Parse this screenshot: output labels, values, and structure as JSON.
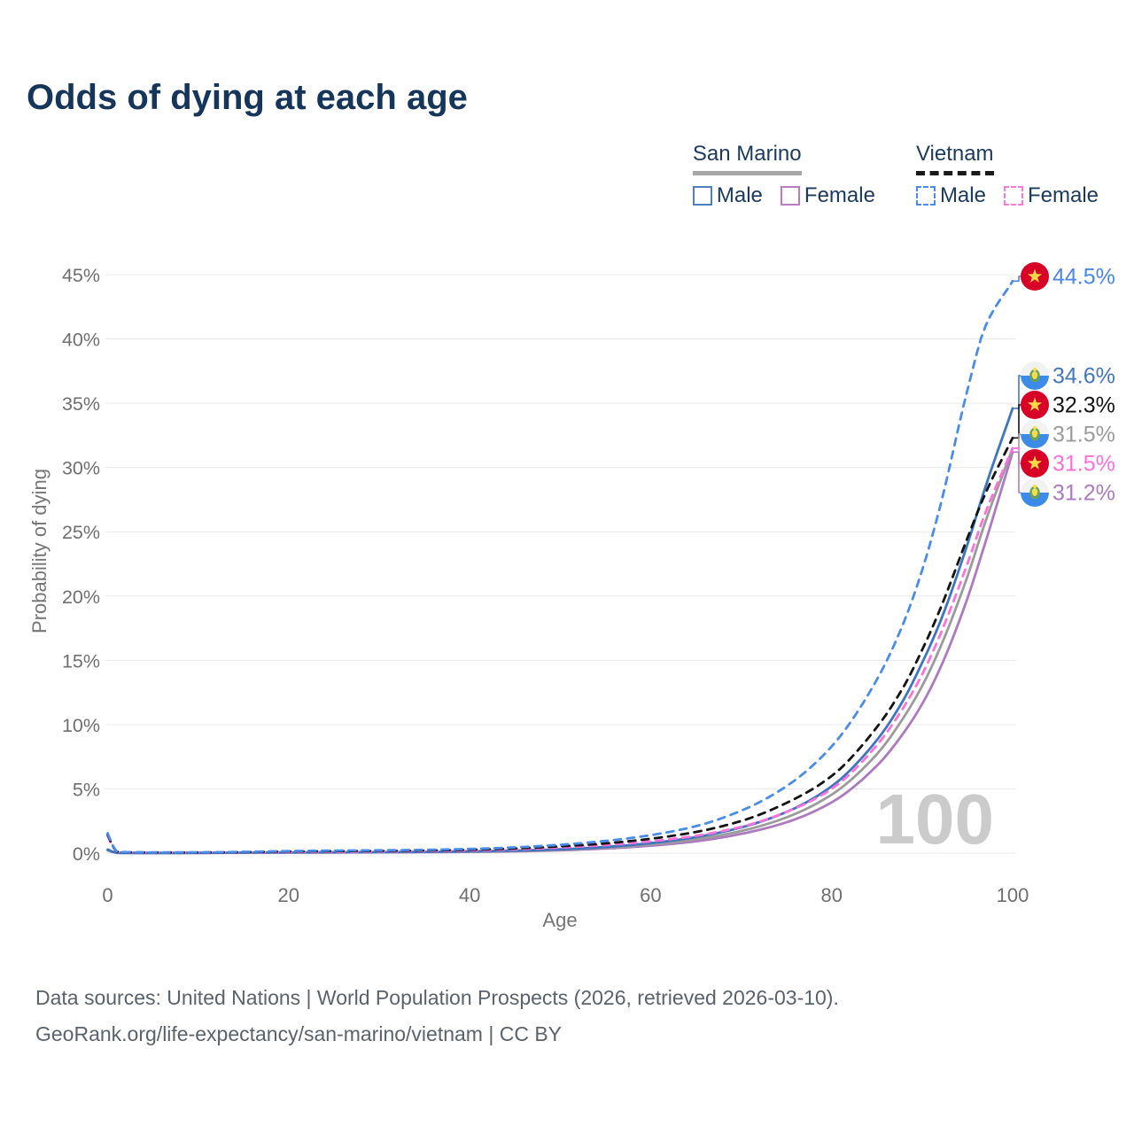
{
  "title": "Odds of dying at each age",
  "legend": {
    "groups": [
      {
        "name": "San Marino",
        "line_style": "solid",
        "rule_color": "#A7A7A7",
        "items": [
          {
            "label": "Male",
            "box_color": "#4E7FBE",
            "box_style": "solid"
          },
          {
            "label": "Female",
            "box_color": "#BC7BC4",
            "box_style": "solid"
          }
        ]
      },
      {
        "name": "Vietnam",
        "line_style": "dashed",
        "rule_color": "#1A1A1A",
        "items": [
          {
            "label": "Male",
            "box_color": "#4A8CEA",
            "box_style": "dashed"
          },
          {
            "label": "Female",
            "box_color": "#FF77DD",
            "box_style": "dashed"
          }
        ]
      }
    ]
  },
  "footer": {
    "line1": "Data sources: United Nations | World Population Prospects (2026, retrieved 2026-03-10).",
    "line2": "GeoRank.org/life-expectancy/san-marino/vietnam | CC BY"
  },
  "chart_data": {
    "type": "line",
    "title": "Odds of dying at each age",
    "xlabel": "Age",
    "ylabel": "Probability of dying",
    "xlim": [
      0,
      100
    ],
    "ylim": [
      0,
      45
    ],
    "grid": "horizontal-only",
    "watermark": "100",
    "xticks": [
      {
        "value": 0,
        "label": "0"
      },
      {
        "value": 20,
        "label": "20"
      },
      {
        "value": 40,
        "label": "40"
      },
      {
        "value": 60,
        "label": "60"
      },
      {
        "value": 80,
        "label": "80"
      },
      {
        "value": 100,
        "label": "100"
      }
    ],
    "yticks": [
      {
        "value": 0,
        "label": "0%"
      },
      {
        "value": 5,
        "label": "5%"
      },
      {
        "value": 10,
        "label": "10%"
      },
      {
        "value": 15,
        "label": "15%"
      },
      {
        "value": 20,
        "label": "20%"
      },
      {
        "value": 25,
        "label": "25%"
      },
      {
        "value": 30,
        "label": "30%"
      },
      {
        "value": 35,
        "label": "35%"
      },
      {
        "value": 40,
        "label": "40%"
      },
      {
        "value": 45,
        "label": "45%"
      }
    ],
    "ages": [
      0,
      1,
      2,
      5,
      10,
      15,
      20,
      25,
      30,
      35,
      40,
      45,
      50,
      55,
      60,
      65,
      70,
      75,
      80,
      85,
      88,
      90,
      92,
      95,
      97,
      100
    ],
    "series": [
      {
        "name": "San Marino Female",
        "country": "San Marino",
        "sex": "Female",
        "flag": "san-marino",
        "color": "#AE7ABF",
        "dashed": false,
        "end_label": {
          "text": "31.2%",
          "color": "#AE7ABF"
        },
        "end_value": 31.2,
        "values": [
          0.22,
          0.02,
          0.015,
          0.01,
          0.015,
          0.03,
          0.04,
          0.05,
          0.06,
          0.075,
          0.1,
          0.14,
          0.22,
          0.36,
          0.58,
          0.92,
          1.5,
          2.4,
          3.95,
          6.8,
          9.4,
          11.6,
          14.4,
          19.8,
          24.2,
          31.2
        ]
      },
      {
        "name": "San Marino Both sexes",
        "country": "San Marino",
        "sex": "Both",
        "flag": "san-marino",
        "color": "#9B9B9B",
        "dashed": false,
        "end_label": {
          "text": "31.5%",
          "color": "#9B9B9B"
        },
        "end_value": 31.5,
        "values": [
          0.25,
          0.025,
          0.018,
          0.013,
          0.018,
          0.035,
          0.05,
          0.06,
          0.07,
          0.09,
          0.12,
          0.17,
          0.26,
          0.42,
          0.68,
          1.08,
          1.72,
          2.78,
          4.55,
          7.7,
          10.6,
          13.0,
          16.0,
          21.5,
          25.8,
          31.5
        ]
      },
      {
        "name": "San Marino Male",
        "country": "San Marino",
        "sex": "Male",
        "flag": "san-marino",
        "color": "#3D76C0",
        "dashed": false,
        "end_label": {
          "text": "34.6%",
          "color": "#4377BD"
        },
        "end_value": 34.6,
        "values": [
          0.28,
          0.03,
          0.02,
          0.015,
          0.02,
          0.04,
          0.06,
          0.07,
          0.08,
          0.1,
          0.14,
          0.2,
          0.3,
          0.48,
          0.78,
          1.25,
          2.0,
          3.2,
          5.2,
          8.8,
          12.0,
          14.8,
          18.0,
          24.0,
          28.5,
          34.6
        ]
      },
      {
        "name": "Vietnam Female",
        "country": "Vietnam",
        "sex": "Female",
        "flag": "vietnam",
        "color": "#FF70DB",
        "dashed": true,
        "end_label": {
          "text": "31.5%",
          "color": "#FF70DB"
        },
        "end_value": 31.5,
        "values": [
          1.35,
          0.1,
          0.06,
          0.04,
          0.045,
          0.06,
          0.09,
          0.11,
          0.13,
          0.16,
          0.21,
          0.3,
          0.44,
          0.63,
          0.92,
          1.35,
          2.05,
          3.2,
          5.0,
          8.4,
          11.4,
          13.9,
          17.0,
          22.5,
          26.5,
          31.5
        ]
      },
      {
        "name": "Vietnam Both sexes",
        "country": "Vietnam",
        "sex": "Both",
        "flag": "vietnam",
        "color": "#141414",
        "dashed": true,
        "end_label": {
          "text": "32.3%",
          "color": "#141414"
        },
        "end_value": 32.3,
        "values": [
          1.45,
          0.11,
          0.07,
          0.045,
          0.05,
          0.08,
          0.13,
          0.16,
          0.18,
          0.21,
          0.27,
          0.37,
          0.53,
          0.76,
          1.12,
          1.65,
          2.5,
          3.9,
          6.0,
          9.8,
          13.0,
          15.8,
          19.0,
          24.5,
          28.0,
          32.3
        ]
      },
      {
        "name": "Vietnam Male",
        "country": "Vietnam",
        "sex": "Male",
        "flag": "vietnam",
        "color": "#4A8CEA",
        "dashed": true,
        "end_label": {
          "text": "44.5%",
          "color": "#4A86E8"
        },
        "end_value": 44.5,
        "values": [
          1.55,
          0.12,
          0.08,
          0.05,
          0.06,
          0.1,
          0.16,
          0.2,
          0.22,
          0.26,
          0.33,
          0.45,
          0.65,
          0.95,
          1.4,
          2.1,
          3.3,
          5.2,
          8.3,
          13.5,
          18.0,
          22.0,
          27.0,
          36.0,
          41.0,
          44.5
        ]
      }
    ],
    "end_label_order": [
      "Vietnam Male",
      "San Marino Male",
      "Vietnam Both sexes",
      "San Marino Both sexes",
      "Vietnam Female",
      "San Marino Female"
    ],
    "flag_colors": {
      "vietnam_red": "#D80027",
      "vietnam_star": "#FFDA44",
      "sanmarino_white": "#F2F2F2",
      "sanmarino_blue": "#3C8BE8",
      "sanmarino_green": "#6DA544",
      "sanmarino_gold": "#FFDA44"
    }
  }
}
